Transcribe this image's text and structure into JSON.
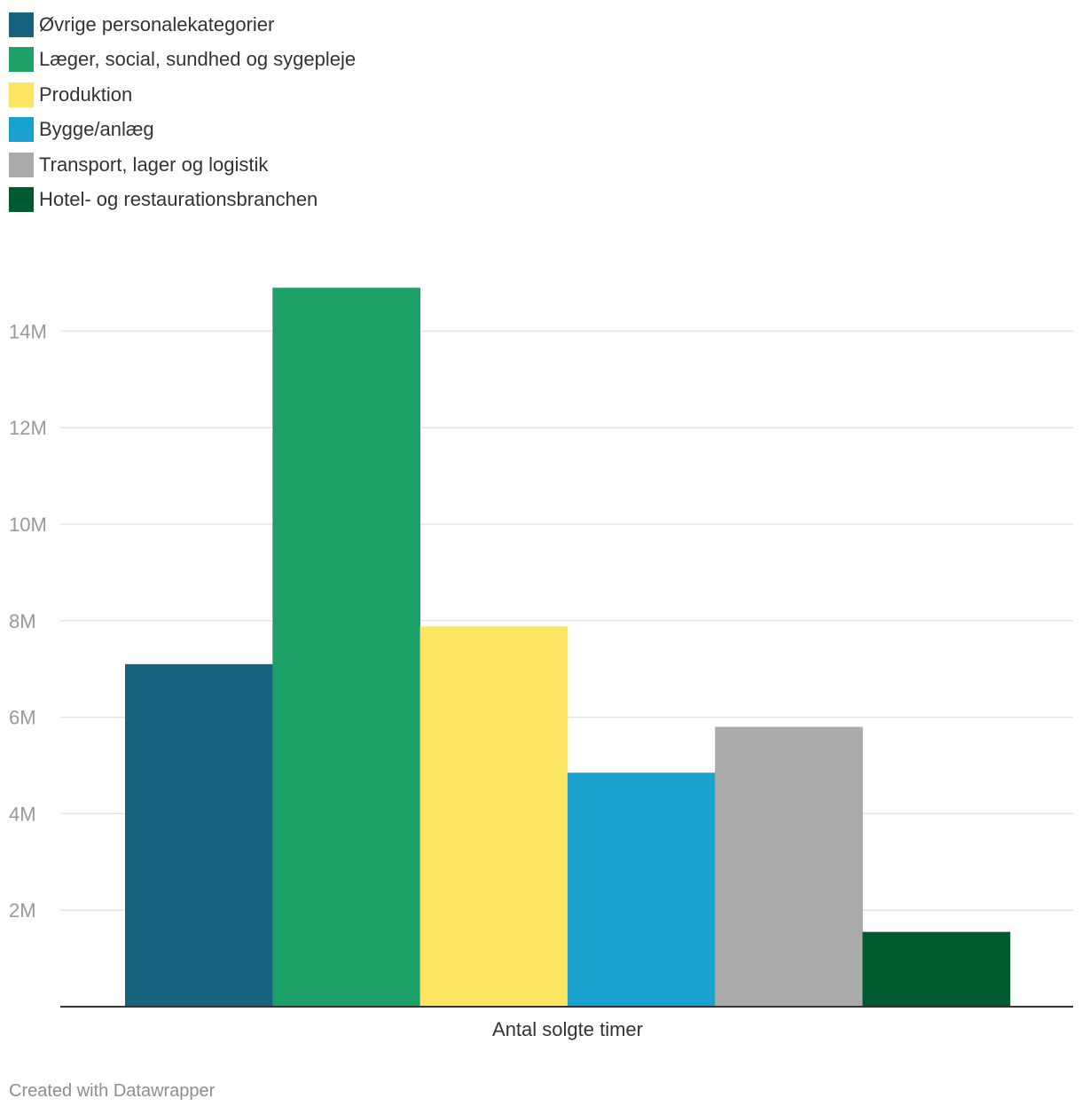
{
  "chart_data": {
    "type": "bar",
    "categories": [
      "Antal solgte timer"
    ],
    "series": [
      {
        "name": "Øvrige personalekategorier",
        "values": [
          7100000
        ],
        "color": "#17627d"
      },
      {
        "name": "Læger, social, sundhed og sygepleje",
        "values": [
          14900000
        ],
        "color": "#1ea168"
      },
      {
        "name": "Produktion",
        "values": [
          7880000
        ],
        "color": "#fce563"
      },
      {
        "name": "Bygge/anlæg",
        "values": [
          4850000
        ],
        "color": "#1aa1ce"
      },
      {
        "name": "Transport, lager og logistik",
        "values": [
          5800000
        ],
        "color": "#aaaaaa"
      },
      {
        "name": "Hotel- og restaurationsbranchen",
        "values": [
          1550000
        ],
        "color": "#005a30"
      }
    ],
    "ylim": [
      0,
      16000000
    ],
    "yticks": [
      2000000,
      4000000,
      6000000,
      8000000,
      10000000,
      12000000,
      14000000
    ],
    "ytick_labels": [
      "2M",
      "4M",
      "6M",
      "8M",
      "10M",
      "12M",
      "14M"
    ],
    "grid": true,
    "legend_position": "top-left"
  },
  "footer": {
    "credit": "Created with Datawrapper"
  }
}
